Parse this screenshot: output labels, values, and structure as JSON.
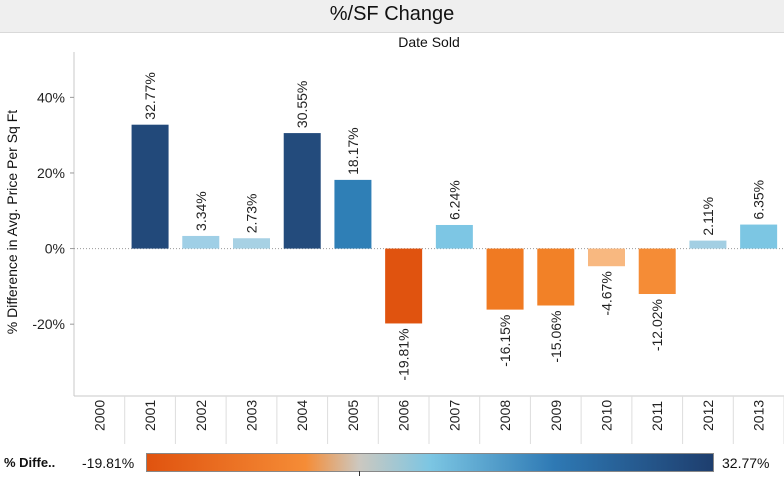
{
  "header": {
    "title": "%/SF Change",
    "column_header": "Date Sold"
  },
  "legend": {
    "title": "% Diffe..",
    "min_label": "-19.81%",
    "max_label": "32.77%",
    "color_negative": "#e0530f",
    "color_positive": "#1e3e6e"
  },
  "chart_data": {
    "type": "bar",
    "title": "%/SF Change",
    "xlabel": "Date Sold",
    "ylabel": "% Difference in Avg. Price Per Sq Ft",
    "ylim": [
      -39,
      52
    ],
    "yticks": [
      -20,
      0,
      20,
      40
    ],
    "ytick_labels": [
      "-20%",
      "0%",
      "20%",
      "40%"
    ],
    "grid": false,
    "categories": [
      "2000",
      "2001",
      "2002",
      "2003",
      "2004",
      "2005",
      "2006",
      "2007",
      "2008",
      "2009",
      "2010",
      "2011",
      "2012",
      "2013"
    ],
    "values": [
      null,
      32.77,
      3.34,
      2.73,
      30.55,
      18.17,
      -19.81,
      6.24,
      -16.15,
      -15.06,
      -4.67,
      -12.02,
      2.11,
      6.35
    ],
    "data_labels": [
      "",
      "32.77%",
      "3.34%",
      "2.73%",
      "30.55%",
      "18.17%",
      "-19.81%",
      "6.24%",
      "-16.15%",
      "-15.06%",
      "-4.67%",
      "-12.02%",
      "2.11%",
      "6.35%"
    ],
    "bar_colors": [
      "",
      "#22497a",
      "#9fcfe6",
      "#a7d1e4",
      "#234b7c",
      "#2f7fb6",
      "#e0530f",
      "#7dc6e4",
      "#f07a22",
      "#f28127",
      "#f8b880",
      "#f58c36",
      "#a3cfe3",
      "#7cc6e3"
    ]
  }
}
